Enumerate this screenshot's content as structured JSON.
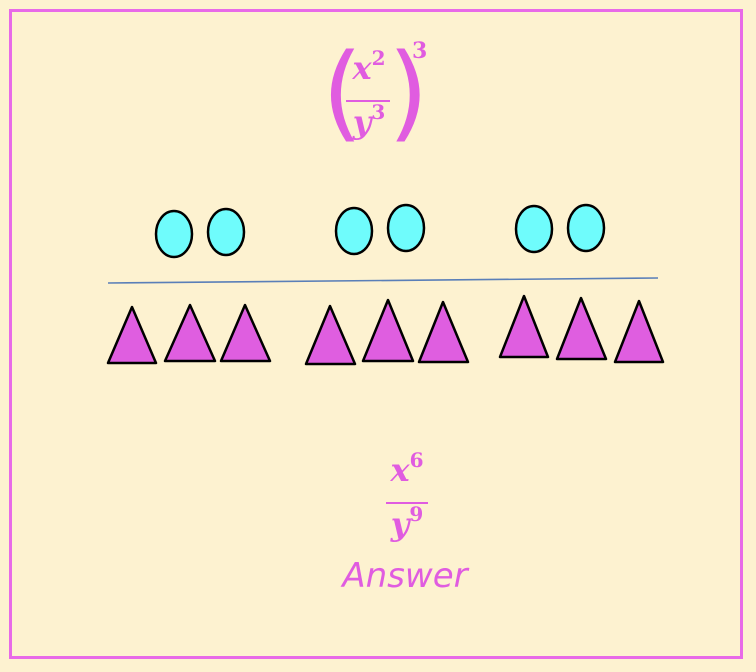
{
  "expression": {
    "numerator_base": "x",
    "numerator_exp": "2",
    "denominator_base": "y",
    "denominator_exp": "3",
    "outer_exp": "3"
  },
  "answer": {
    "numerator_base": "x",
    "numerator_exp": "6",
    "denominator_base": "y",
    "denominator_exp": "9",
    "label": "Answer"
  },
  "colors": {
    "circle_fill": "#6ffcfc",
    "triangle_fill": "#df5ee0",
    "fraction_bar": "#5a7fb8",
    "text": "#e05ce0",
    "border": "#e86ae8",
    "background": "#fdf2d0"
  },
  "groups": [
    {
      "circles": 2,
      "triangles": 3
    },
    {
      "circles": 2,
      "triangles": 3
    },
    {
      "circles": 2,
      "triangles": 3
    }
  ]
}
